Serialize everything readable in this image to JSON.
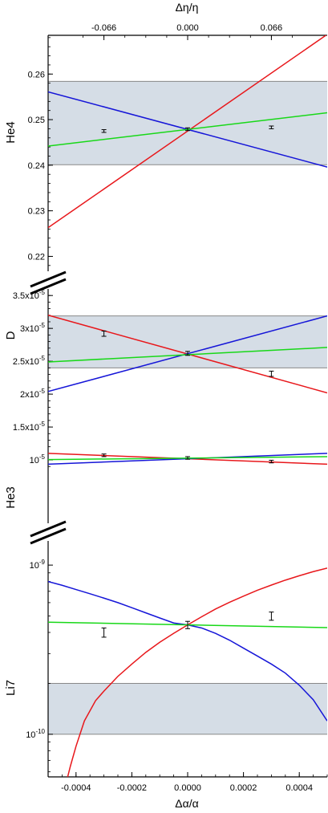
{
  "chart_data": {
    "type": "line",
    "bottom_axis": {
      "label": "Δα/α",
      "range": [
        -0.0005,
        0.0005
      ],
      "ticks": [
        {
          "value": -0.0004,
          "label": "-0.0004"
        },
        {
          "value": -0.0002,
          "label": "-0.0002"
        },
        {
          "value": 0.0,
          "label": "0.0000"
        },
        {
          "value": 0.0002,
          "label": "0.0002"
        },
        {
          "value": 0.0004,
          "label": "0.0004"
        }
      ]
    },
    "top_axis": {
      "label": "Δη/η",
      "ticks": [
        {
          "value": -0.066,
          "label": "-0.066"
        },
        {
          "value": 0.0,
          "label": "0.000"
        },
        {
          "value": 0.066,
          "label": "0.066"
        }
      ]
    },
    "series_colors": {
      "red": "#e8171b",
      "blue": "#1515d8",
      "green": "#18d818"
    },
    "band_color": "#d5dde6",
    "panels": [
      {
        "label": "He4",
        "scale": "linear",
        "ylim": [
          0.2155,
          0.2685
        ],
        "y_ticks": [
          {
            "value": 0.22,
            "label": "0.22"
          },
          {
            "value": 0.23,
            "label": "0.23"
          },
          {
            "value": 0.24,
            "label": "0.24"
          },
          {
            "value": 0.25,
            "label": "0.25"
          },
          {
            "value": 0.26,
            "label": "0.26"
          }
        ],
        "band": [
          0.2401,
          0.2584
        ],
        "series": [
          {
            "color": "red",
            "x": [
              -0.0005,
              0.0005
            ],
            "y": [
              0.2263,
              0.2687
            ]
          },
          {
            "color": "blue",
            "x": [
              -0.0005,
              0.0005
            ],
            "y": [
              0.2561,
              0.2396
            ]
          },
          {
            "color": "green",
            "x": [
              -0.0005,
              0.0005
            ],
            "y": [
              0.2442,
              0.2515
            ]
          }
        ],
        "error_points": [
          {
            "x": -0.0003,
            "y": 0.2475,
            "err": 0.0003
          },
          {
            "x": 0.0,
            "y": 0.2479,
            "err": 0.0003
          },
          {
            "x": 0.0003,
            "y": 0.2483,
            "err": 0.0003
          }
        ]
      },
      {
        "label": "D",
        "scale": "linear",
        "ylim": [
          0.0,
          3.6e-05
        ],
        "y_ticks": [
          {
            "value": 1e-05,
            "mantissa": "10",
            "exp": "-5"
          },
          {
            "value": 1.5e-05,
            "mantissa": "1.5x10",
            "exp": "-5"
          },
          {
            "value": 2e-05,
            "mantissa": "2x10",
            "exp": "-5"
          },
          {
            "value": 2.5e-05,
            "mantissa": "2.5x10",
            "exp": "-5"
          },
          {
            "value": 3e-05,
            "mantissa": "3x10",
            "exp": "-5"
          },
          {
            "value": 3.5e-05,
            "mantissa": "3.5x10",
            "exp": "-5"
          }
        ],
        "band": [
          2.4e-05,
          3.19e-05
        ],
        "series": [
          {
            "color": "red",
            "x": [
              -0.0005,
              0.0005
            ],
            "y": [
              3.2e-05,
              2.02e-05
            ]
          },
          {
            "color": "blue",
            "x": [
              -0.0005,
              0.0005
            ],
            "y": [
              2.04e-05,
              3.19e-05
            ]
          },
          {
            "color": "green",
            "x": [
              -0.0005,
              0.0005
            ],
            "y": [
              2.49e-05,
              2.71e-05
            ]
          }
        ],
        "error_points": [
          {
            "x": -0.0003,
            "y": 2.92e-05,
            "err": 4e-07
          },
          {
            "x": 0.0,
            "y": 2.62e-05,
            "err": 3e-07
          },
          {
            "x": 0.0003,
            "y": 2.31e-05,
            "err": 4e-07
          }
        ]
      },
      {
        "label": "He3",
        "scale": "linear",
        "ylim": [
          0.0,
          3.6e-05
        ],
        "y_ticks": [],
        "band": null,
        "series": [
          {
            "color": "red",
            "x": [
              -0.0005,
              0.0005
            ],
            "y": [
              1.1e-05,
              9.35e-06
            ]
          },
          {
            "color": "blue",
            "x": [
              -0.0005,
              0.0005
            ],
            "y": [
              9.35e-06,
              1.1e-05
            ]
          },
          {
            "color": "green",
            "x": [
              -0.0005,
              0.0005
            ],
            "y": [
              1.005e-05,
              1.05e-05
            ]
          }
        ],
        "error_points": [
          {
            "x": -0.0003,
            "y": 1.07e-05,
            "err": 2e-07
          },
          {
            "x": 0.0,
            "y": 1.03e-05,
            "err": 2e-07
          },
          {
            "x": 0.0003,
            "y": 9.75e-06,
            "err": 2e-07
          }
        ]
      },
      {
        "label": "Li7",
        "scale": "log",
        "ylim": [
          5.6e-11,
          1.55e-09
        ],
        "y_ticks": [
          {
            "value": 1e-10,
            "mantissa": "10",
            "exp": "-10"
          },
          {
            "value": 1e-09,
            "mantissa": "10",
            "exp": "-9"
          }
        ],
        "band": [
          1e-10,
          2e-10
        ],
        "series": [
          {
            "color": "red",
            "x": [
              -0.00043,
              -0.00042,
              -0.0004,
              -0.00037,
              -0.00033,
              -0.0003,
              -0.00025,
              -0.0002,
              -0.00015,
              -0.0001,
              -5e-05,
              0.0,
              5e-05,
              0.0001,
              0.00015,
              0.0002,
              0.00025,
              0.0003,
              0.00035,
              0.0004,
              0.00045,
              0.0005
            ],
            "y": [
              5.6e-11,
              6.5e-11,
              8.5e-11,
              1.2e-10,
              1.58e-10,
              1.8e-10,
              2.2e-10,
              2.6e-10,
              3.05e-10,
              3.5e-10,
              3.95e-10,
              4.43e-10,
              4.95e-10,
              5.5e-10,
              6.03e-10,
              6.55e-10,
              7.1e-10,
              7.62e-10,
              8.15e-10,
              8.65e-10,
              9.15e-10,
              9.6e-10
            ]
          },
          {
            "color": "blue",
            "x": [
              -0.0005,
              -0.00045,
              -0.0004,
              -0.00035,
              -0.0003,
              -0.00025,
              -0.0002,
              -0.00015,
              -0.0001,
              -5e-05,
              0.0,
              5e-05,
              0.0001,
              0.00015,
              0.0002,
              0.00025,
              0.0003,
              0.00035,
              0.0004,
              0.00045,
              0.0005
            ],
            "y": [
              8e-10,
              7.6e-10,
              7.17e-10,
              6.77e-10,
              6.38e-10,
              6e-10,
              5.6e-10,
              5.22e-10,
              4.87e-10,
              4.55e-10,
              4.43e-10,
              4.25e-10,
              3.95e-10,
              3.6e-10,
              3.23e-10,
              2.9e-10,
              2.6e-10,
              2.3e-10,
              1.95e-10,
              1.6e-10,
              1.2e-10
            ]
          },
          {
            "color": "green",
            "x": [
              -0.0005,
              0.0005
            ],
            "y": [
              4.6e-10,
              4.27e-10
            ]
          }
        ],
        "error_points": [
          {
            "x": -0.0003,
            "y": 4e-10,
            "err": 2.5e-11
          },
          {
            "x": 0.0,
            "y": 4.43e-10,
            "err": 2.2e-11
          },
          {
            "x": 0.0003,
            "y": 5e-10,
            "err": 2.8e-11
          }
        ]
      }
    ]
  }
}
